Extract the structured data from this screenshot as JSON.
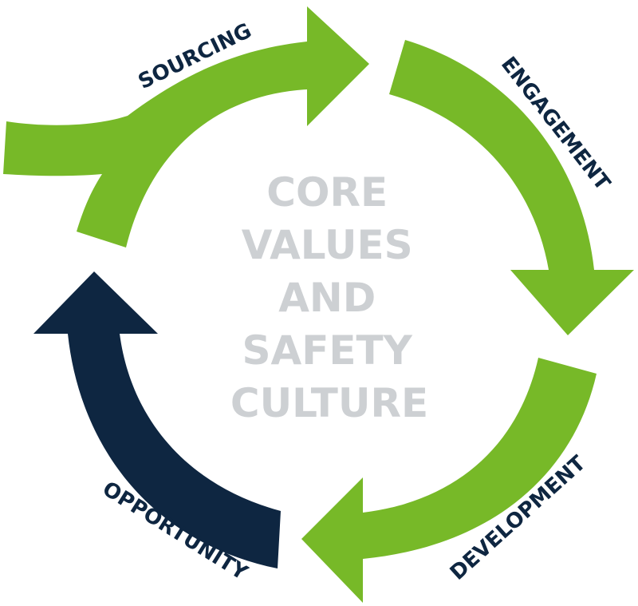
{
  "diagram": {
    "center_lines": [
      "CORE",
      "VALUES",
      "AND",
      "SAFETY",
      "CULTURE"
    ],
    "stages": [
      {
        "label": "SOURCING"
      },
      {
        "label": "ENGAGEMENT"
      },
      {
        "label": "DEVELOPMENT"
      },
      {
        "label": "OPPORTUNITY"
      }
    ]
  },
  "colors": {
    "green": "#77B928",
    "navy": "#0E2641",
    "center_text": "#CDD0D3"
  }
}
